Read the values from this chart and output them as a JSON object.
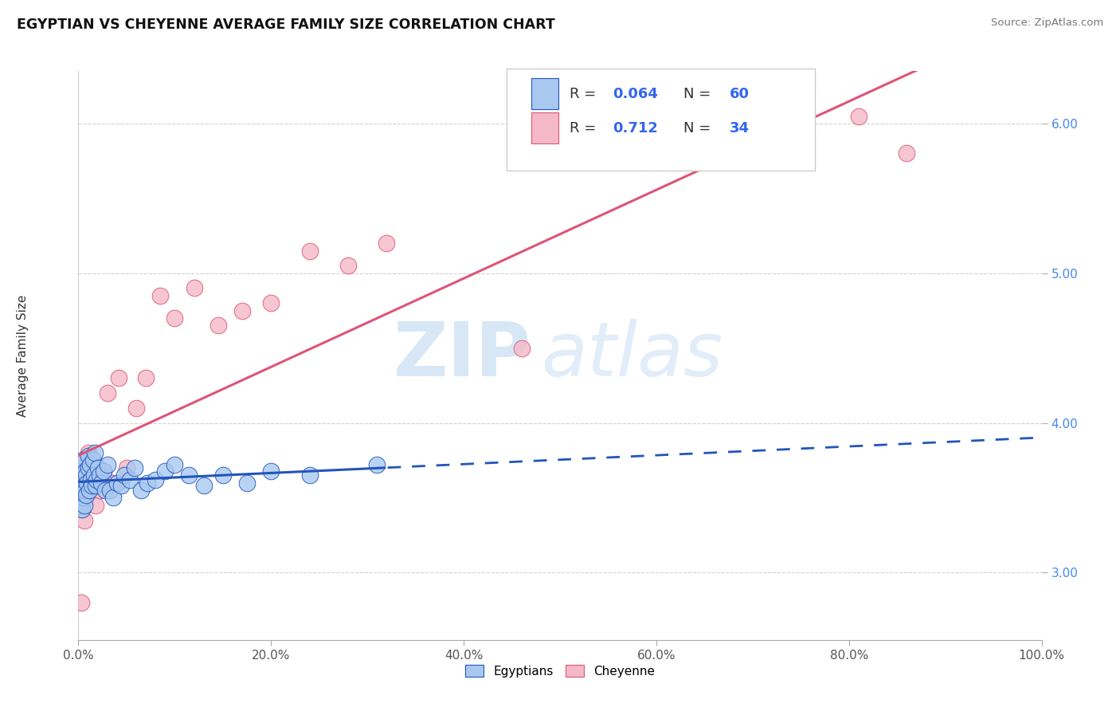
{
  "title": "EGYPTIAN VS CHEYENNE AVERAGE FAMILY SIZE CORRELATION CHART",
  "source_text": "Source: ZipAtlas.com",
  "ylabel": "Average Family Size",
  "xlim": [
    0.0,
    1.0
  ],
  "ylim": [
    2.55,
    6.35
  ],
  "yticks": [
    3.0,
    4.0,
    5.0,
    6.0
  ],
  "xticks": [
    0.0,
    0.2,
    0.4,
    0.6,
    0.8,
    1.0
  ],
  "xticklabels": [
    "0.0%",
    "20.0%",
    "40.0%",
    "60.0%",
    "80.0%",
    "100.0%"
  ],
  "egyptians_color": "#A8C8F0",
  "cheyenne_color": "#F5B8C8",
  "egyptian_line_color": "#2255BB",
  "cheyenne_line_color": "#DD5577",
  "r_egyptian": 0.064,
  "n_egyptian": 60,
  "r_cheyenne": 0.712,
  "n_cheyenne": 34,
  "watermark_zip": "ZIP",
  "watermark_atlas": "atlas",
  "legend_labels": [
    "Egyptians",
    "Cheyenne"
  ],
  "egyptians_x": [
    0.001,
    0.001,
    0.001,
    0.002,
    0.002,
    0.002,
    0.002,
    0.003,
    0.003,
    0.003,
    0.003,
    0.004,
    0.004,
    0.004,
    0.005,
    0.005,
    0.005,
    0.006,
    0.006,
    0.007,
    0.007,
    0.008,
    0.008,
    0.009,
    0.01,
    0.01,
    0.011,
    0.012,
    0.013,
    0.014,
    0.015,
    0.016,
    0.017,
    0.018,
    0.019,
    0.02,
    0.022,
    0.024,
    0.026,
    0.028,
    0.03,
    0.033,
    0.036,
    0.04,
    0.044,
    0.048,
    0.053,
    0.058,
    0.065,
    0.072,
    0.08,
    0.09,
    0.1,
    0.115,
    0.13,
    0.15,
    0.175,
    0.2,
    0.24,
    0.31
  ],
  "egyptians_y": [
    3.5,
    3.55,
    3.65,
    3.45,
    3.52,
    3.6,
    3.7,
    3.48,
    3.58,
    3.62,
    3.72,
    3.42,
    3.55,
    3.68,
    3.5,
    3.62,
    3.75,
    3.45,
    3.58,
    3.55,
    3.68,
    3.52,
    3.65,
    3.6,
    3.7,
    3.78,
    3.55,
    3.72,
    3.62,
    3.58,
    3.75,
    3.65,
    3.8,
    3.58,
    3.62,
    3.7,
    3.65,
    3.6,
    3.68,
    3.55,
    3.72,
    3.55,
    3.5,
    3.6,
    3.58,
    3.65,
    3.62,
    3.7,
    3.55,
    3.6,
    3.62,
    3.68,
    3.72,
    3.65,
    3.58,
    3.65,
    3.6,
    3.68,
    3.65,
    3.72
  ],
  "cheyenne_x": [
    0.001,
    0.002,
    0.003,
    0.004,
    0.005,
    0.006,
    0.007,
    0.008,
    0.009,
    0.01,
    0.012,
    0.015,
    0.018,
    0.022,
    0.026,
    0.03,
    0.036,
    0.042,
    0.05,
    0.06,
    0.07,
    0.085,
    0.1,
    0.12,
    0.145,
    0.17,
    0.2,
    0.24,
    0.28,
    0.32,
    0.46,
    0.73,
    0.81,
    0.86
  ],
  "cheyenne_y": [
    3.48,
    3.55,
    2.8,
    3.42,
    3.6,
    3.35,
    3.72,
    3.5,
    3.65,
    3.8,
    3.58,
    3.62,
    3.45,
    3.55,
    3.68,
    4.2,
    3.6,
    4.3,
    3.7,
    4.1,
    4.3,
    4.85,
    4.7,
    4.9,
    4.65,
    4.75,
    4.8,
    5.15,
    5.05,
    5.2,
    4.5,
    5.9,
    6.05,
    5.8
  ]
}
